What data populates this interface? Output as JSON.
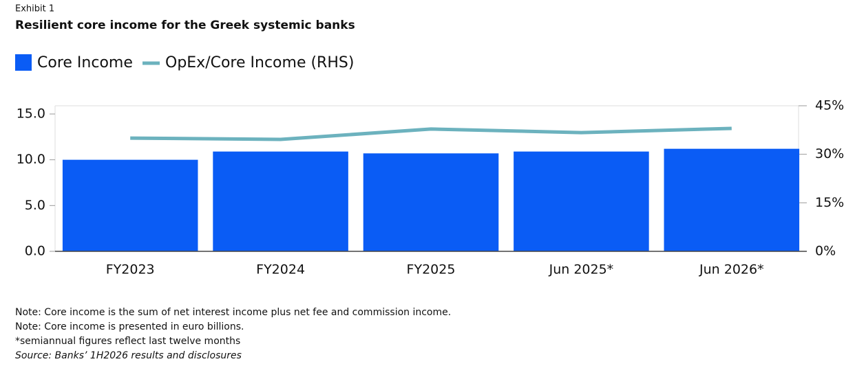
{
  "chart_data": {
    "type": "bar_line",
    "exhibit": "Exhibit 1",
    "title": "Resilient core income for the Greek systemic banks",
    "categories": [
      "FY2023",
      "FY2024",
      "FY2025",
      "Jun 2025*",
      "Jun 2026*"
    ],
    "series": [
      {
        "name": "Core Income",
        "type": "bar",
        "color": "#0a5cf5",
        "values": [
          10.0,
          10.9,
          10.7,
          10.9,
          11.2
        ]
      },
      {
        "name": "OpEx/Core Income (RHS)",
        "type": "line",
        "axis": "y2",
        "color": "#6cb2be",
        "values": [
          35,
          34.6,
          37.8,
          36.7,
          38
        ]
      }
    ],
    "ylim": [
      0,
      15.9
    ],
    "yticks": [
      {
        "value": 0,
        "label": "0.0"
      },
      {
        "value": 5,
        "label": "5.0"
      },
      {
        "value": 10,
        "label": "10.0"
      },
      {
        "value": 15,
        "label": "15.0"
      }
    ],
    "y2lim": [
      0,
      45
    ],
    "y2ticks": [
      {
        "value": 0,
        "label": "0%"
      },
      {
        "value": 15,
        "label": "15%"
      },
      {
        "value": 30,
        "label": "30%"
      },
      {
        "value": 45,
        "label": "45%"
      }
    ],
    "grid": false,
    "legend": "top-left",
    "notes": [
      "Note: Core income is the sum of net interest income plus net fee and commission income.",
      "Note: Core income is presented in euro billions.",
      "*semiannual figures reflect last twelve months",
      "Source: Banks’ 1H2026 results and disclosures"
    ]
  }
}
